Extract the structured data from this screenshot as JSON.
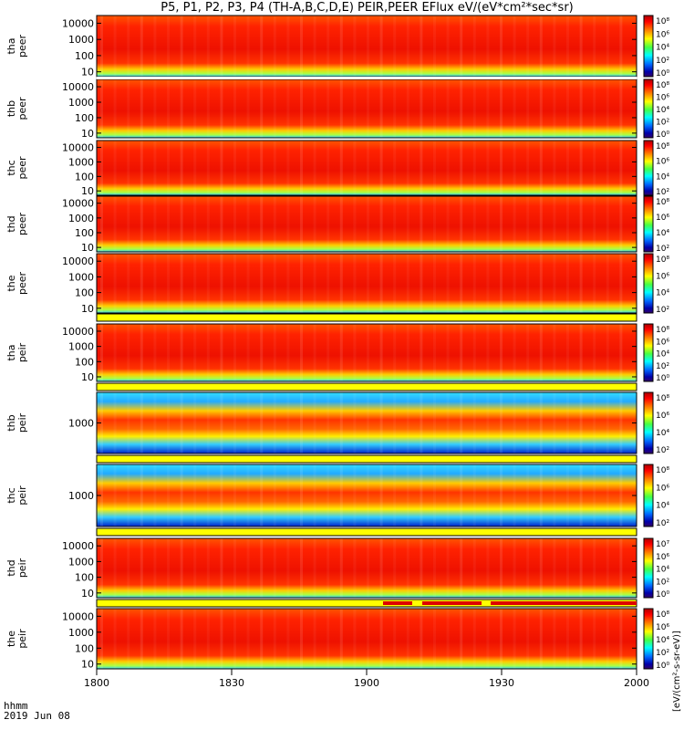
{
  "title": "P5, P1, P2, P3, P4 (TH-A,B,C,D,E) PEIR,PEER EFlux eV/(eV*cm²*sec*sr)",
  "footer": {
    "label": "hhmm",
    "date": "2019 Jun 08"
  },
  "colorbar_units": "[eV/(cm²-s-sr-eV)]",
  "colors": {
    "panel_bg": "#ff1a00",
    "yellow_bar": "#ffff00",
    "red_flag": "#dd0000"
  },
  "chart_data": [
    {
      "type": "heatmap",
      "name": "thapeer",
      "ylabel_line1": "tha",
      "ylabel_line2": "peer",
      "yticks": [
        "10000",
        "1000",
        "100",
        "10"
      ],
      "ylim": [
        5,
        30000
      ],
      "yscale": "log",
      "colorbar_ticks": [
        "10⁸",
        "10⁶",
        "10⁴",
        "10²",
        "10⁰"
      ]
    },
    {
      "type": "heatmap",
      "name": "thbpeer",
      "ylabel_line1": "thb",
      "ylabel_line2": "peer",
      "yticks": [
        "10000",
        "1000",
        "100",
        "10"
      ],
      "ylim": [
        5,
        30000
      ],
      "yscale": "log",
      "colorbar_ticks": [
        "10⁸",
        "10⁶",
        "10⁴",
        "10²",
        "10⁰"
      ]
    },
    {
      "type": "heatmap",
      "name": "thcpeer",
      "ylabel_line1": "thc",
      "ylabel_line2": "peer",
      "yticks": [
        "10000",
        "1000",
        "100",
        "10"
      ],
      "ylim": [
        5,
        30000
      ],
      "yscale": "log",
      "colorbar_ticks": [
        "10⁸",
        "10⁶",
        "10⁴",
        "10²"
      ]
    },
    {
      "type": "heatmap",
      "name": "thdpeer",
      "ylabel_line1": "thd",
      "ylabel_line2": "peer",
      "yticks": [
        "10000",
        "1000",
        "100",
        "10"
      ],
      "ylim": [
        5,
        30000
      ],
      "yscale": "log",
      "colorbar_ticks": [
        "10⁸",
        "10⁶",
        "10⁴",
        "10²"
      ]
    },
    {
      "type": "heatmap",
      "name": "thepeer",
      "ylabel_line1": "the",
      "ylabel_line2": "peer",
      "yticks": [
        "10000",
        "1000",
        "100",
        "10"
      ],
      "ylim": [
        5,
        30000
      ],
      "yscale": "log",
      "colorbar_ticks": [
        "10⁸",
        "10⁶",
        "10⁴",
        "10²"
      ]
    },
    {
      "type": "heatmap",
      "name": "thapeir",
      "ylabel_line1": "tha",
      "ylabel_line2": "peir",
      "yticks": [
        "10000",
        "1000",
        "100",
        "10"
      ],
      "ylim": [
        5,
        30000
      ],
      "yscale": "log",
      "colorbar_ticks": [
        "10⁸",
        "10⁶",
        "10⁴",
        "10²",
        "10⁰"
      ]
    },
    {
      "type": "heatmap",
      "name": "thbpeir",
      "ylabel_line1": "thb",
      "ylabel_line2": "peir",
      "yticks": [
        "1000"
      ],
      "ylim": [
        200,
        5000
      ],
      "yscale": "log",
      "colorbar_ticks": [
        "10⁸",
        "10⁶",
        "10⁴",
        "10²"
      ]
    },
    {
      "type": "heatmap",
      "name": "thcpeir",
      "ylabel_line1": "thc",
      "ylabel_line2": "peir",
      "yticks": [
        "1000"
      ],
      "ylim": [
        200,
        5000
      ],
      "yscale": "log",
      "colorbar_ticks": [
        "10⁸",
        "10⁶",
        "10⁴",
        "10²"
      ]
    },
    {
      "type": "heatmap",
      "name": "thdpeir",
      "ylabel_line1": "thd",
      "ylabel_line2": "peir",
      "yticks": [
        "10000",
        "1000",
        "100",
        "10"
      ],
      "ylim": [
        5,
        30000
      ],
      "yscale": "log",
      "colorbar_ticks": [
        "10⁷",
        "10⁶",
        "10⁴",
        "10²",
        "10⁰"
      ]
    },
    {
      "type": "heatmap",
      "name": "thepeir",
      "ylabel_line1": "the",
      "ylabel_line2": "peir",
      "yticks": [
        "10000",
        "1000",
        "100",
        "10"
      ],
      "ylim": [
        5,
        30000
      ],
      "yscale": "log",
      "colorbar_ticks": [
        "10⁸",
        "10⁶",
        "10⁴",
        "10²",
        "10⁰"
      ]
    }
  ],
  "x_axis": {
    "ticks": [
      "1800",
      "1830",
      "1900",
      "1930",
      "2000"
    ],
    "range": [
      "18:00",
      "20:00"
    ]
  }
}
